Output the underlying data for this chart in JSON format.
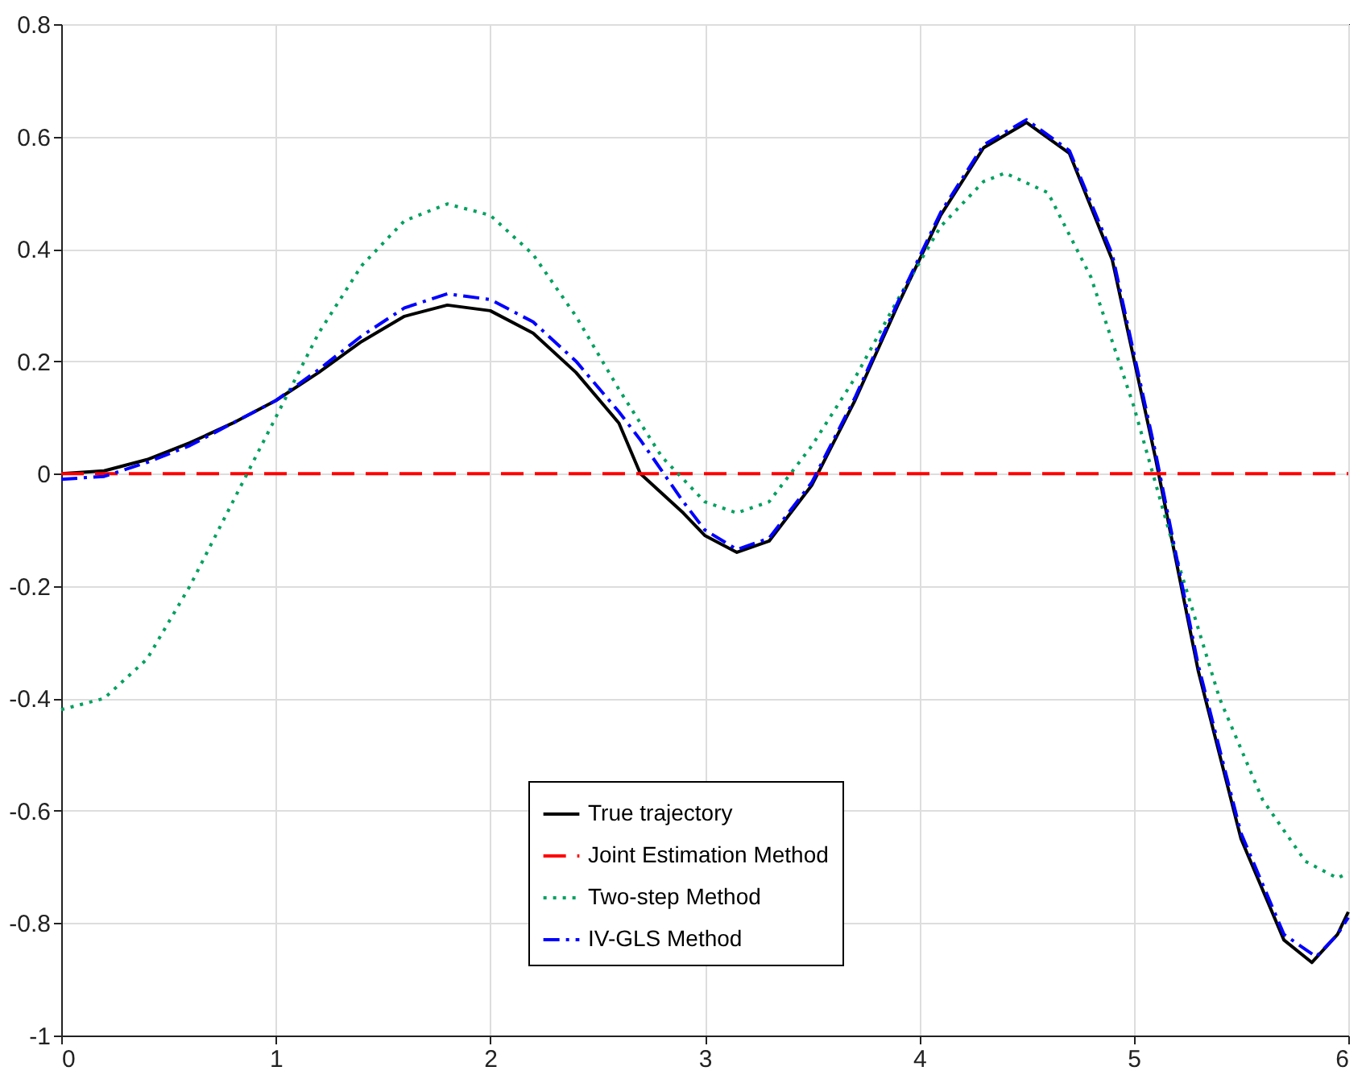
{
  "chart_data": {
    "type": "line",
    "xlim": [
      0,
      6
    ],
    "ylim": [
      -1,
      0.8
    ],
    "xticks": [
      0,
      1,
      2,
      3,
      4,
      5,
      6
    ],
    "yticks": [
      -1,
      -0.8,
      -0.6,
      -0.4,
      -0.2,
      0,
      0.2,
      0.4,
      0.6,
      0.8
    ],
    "grid": true,
    "legend": "bottom",
    "series": [
      {
        "name": "True trajectory",
        "color": "#000000",
        "line_style": "solid",
        "x": [
          0,
          0.2,
          0.4,
          0.6,
          0.8,
          1.0,
          1.2,
          1.4,
          1.6,
          1.8,
          2.0,
          2.2,
          2.4,
          2.6,
          2.7,
          2.9,
          3.0,
          3.15,
          3.3,
          3.5,
          3.7,
          3.9,
          4.1,
          4.3,
          4.5,
          4.7,
          4.9,
          5.1,
          5.3,
          5.5,
          5.7,
          5.83,
          5.95,
          6.0
        ],
        "values": [
          0,
          0.005,
          0.025,
          0.055,
          0.09,
          0.13,
          0.18,
          0.235,
          0.28,
          0.3,
          0.29,
          0.25,
          0.18,
          0.09,
          0.0,
          -0.07,
          -0.11,
          -0.14,
          -0.12,
          -0.02,
          0.13,
          0.3,
          0.46,
          0.58,
          0.625,
          0.57,
          0.38,
          0.03,
          -0.35,
          -0.65,
          -0.83,
          -0.87,
          -0.82,
          -0.78
        ]
      },
      {
        "name": "Joint Estimation Method",
        "color": "#ff0000",
        "line_style": "dashed",
        "x": [
          0,
          6
        ],
        "values": [
          0,
          0
        ]
      },
      {
        "name": "Two-step Method",
        "color": "#00a060",
        "line_style": "dotted",
        "x": [
          0,
          0.2,
          0.4,
          0.6,
          0.8,
          1.0,
          1.2,
          1.4,
          1.6,
          1.8,
          2.0,
          2.2,
          2.4,
          2.6,
          2.8,
          3.0,
          3.15,
          3.3,
          3.5,
          3.7,
          3.9,
          4.1,
          4.3,
          4.4,
          4.6,
          4.8,
          5.0,
          5.2,
          5.4,
          5.6,
          5.8,
          5.95,
          6.0
        ],
        "values": [
          -0.42,
          -0.4,
          -0.33,
          -0.2,
          -0.05,
          0.1,
          0.25,
          0.37,
          0.45,
          0.48,
          0.46,
          0.39,
          0.28,
          0.15,
          0.03,
          -0.05,
          -0.07,
          -0.05,
          0.05,
          0.17,
          0.31,
          0.44,
          0.52,
          0.535,
          0.5,
          0.35,
          0.12,
          -0.15,
          -0.4,
          -0.58,
          -0.69,
          -0.72,
          -0.71
        ]
      },
      {
        "name": "IV-GLS Method",
        "color": "#0000ff",
        "line_style": "dashdot",
        "x": [
          0,
          0.2,
          0.4,
          0.6,
          0.8,
          1.0,
          1.2,
          1.4,
          1.6,
          1.8,
          2.0,
          2.2,
          2.4,
          2.6,
          2.7,
          2.9,
          3.0,
          3.15,
          3.3,
          3.5,
          3.7,
          3.9,
          4.1,
          4.3,
          4.5,
          4.7,
          4.9,
          5.1,
          5.3,
          5.5,
          5.7,
          5.85,
          5.95,
          6.0
        ],
        "values": [
          -0.01,
          -0.005,
          0.02,
          0.05,
          0.09,
          0.13,
          0.185,
          0.245,
          0.295,
          0.32,
          0.31,
          0.27,
          0.2,
          0.11,
          0.06,
          -0.05,
          -0.1,
          -0.135,
          -0.115,
          -0.015,
          0.135,
          0.305,
          0.465,
          0.585,
          0.63,
          0.575,
          0.39,
          0.04,
          -0.34,
          -0.64,
          -0.82,
          -0.86,
          -0.82,
          -0.79
        ]
      }
    ]
  }
}
